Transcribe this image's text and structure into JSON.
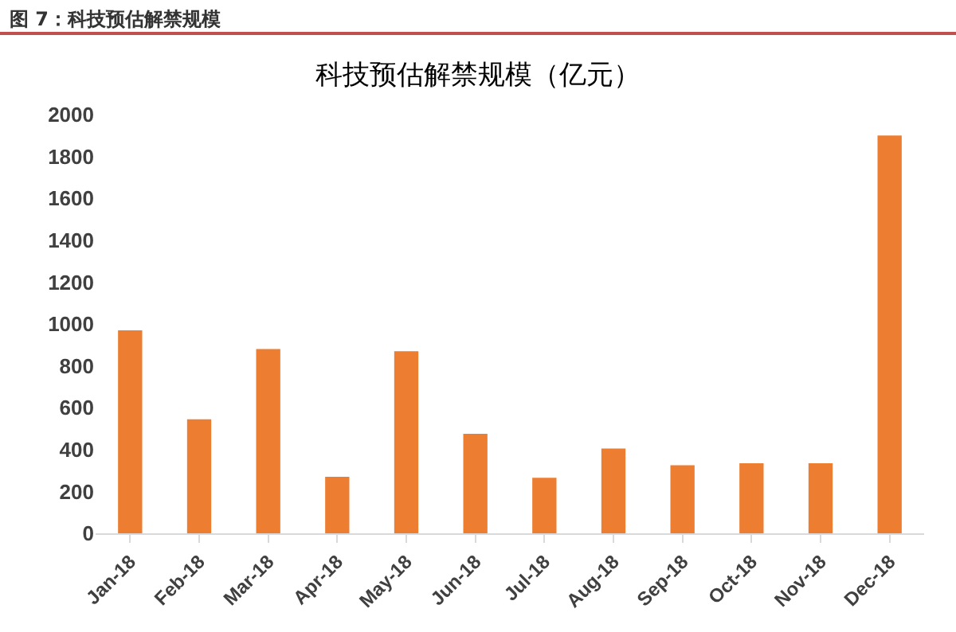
{
  "chart_data": {
    "type": "bar",
    "title": "科技预估解禁规模（亿元）",
    "annotations": [
      "图 7：科技预估解禁规模"
    ],
    "categories": [
      "Jan-18",
      "Feb-18",
      "Mar-18",
      "Apr-18",
      "May-18",
      "Jun-18",
      "Jul-18",
      "Aug-18",
      "Sep-18",
      "Oct-18",
      "Nov-18",
      "Dec-18"
    ],
    "values": [
      970,
      545,
      880,
      270,
      870,
      475,
      265,
      405,
      325,
      335,
      335,
      1900
    ],
    "color": "#ed7d31",
    "ylim": [
      0,
      2000
    ],
    "yticks": [
      0,
      200,
      400,
      600,
      800,
      1000,
      1200,
      1400,
      1600,
      1800,
      2000
    ],
    "grid": false,
    "legend": false
  }
}
